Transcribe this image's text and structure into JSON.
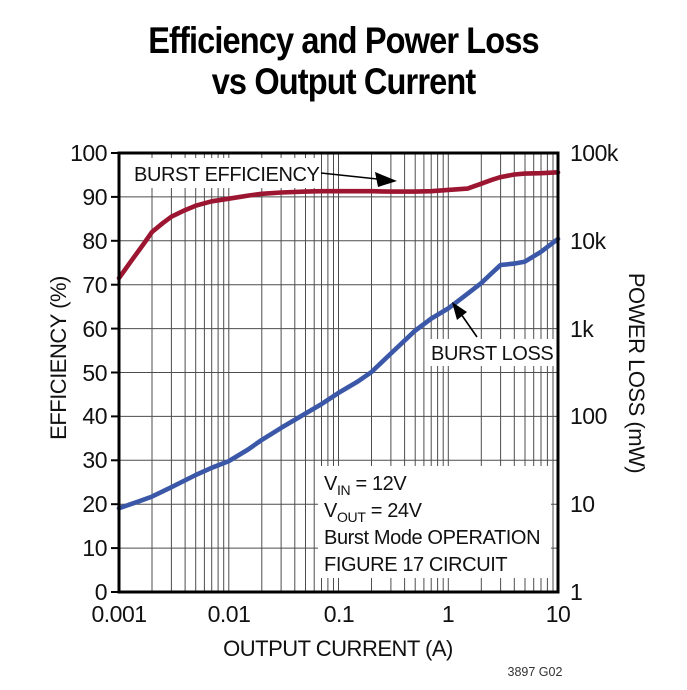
{
  "title": {
    "line1": "Efficiency and Power Loss",
    "line2": "vs Output Current"
  },
  "conditions": [
    {
      "pre": "V",
      "sub": "IN",
      "post": " = 12V"
    },
    {
      "pre": "V",
      "sub": "OUT",
      "post": " = 24V"
    },
    {
      "pre": "Burst Mode OPERATION",
      "sub": "",
      "post": ""
    },
    {
      "pre": "FIGURE 17 CIRCUIT",
      "sub": "",
      "post": ""
    }
  ],
  "colors": {
    "efficiency_curve": "#9c1632",
    "loss_curve": "#3b57a8",
    "grid": "#4d4d4d",
    "axis": "#000000",
    "background": "#ffffff"
  },
  "chart_data": {
    "type": "line",
    "title": "Efficiency and Power Loss vs Output Current",
    "figure_code": "3897 G02",
    "x_axis": {
      "label": "OUTPUT CURRENT (A)",
      "scale": "log",
      "min": 0.001,
      "max": 10,
      "ticks": [
        "0.001",
        "0.01",
        "0.1",
        "1",
        "10"
      ],
      "grid": "log minor gridlines on"
    },
    "y_left": {
      "label": "EFFICIENCY (%)",
      "scale": "linear",
      "min": 0,
      "max": 100,
      "step": 10,
      "ticks": [
        "100",
        "90",
        "80",
        "70",
        "60",
        "50",
        "40",
        "30",
        "20",
        "10",
        "0"
      ]
    },
    "y_right": {
      "label": "POWER LOSS (mW)",
      "scale": "log",
      "min": 1,
      "max": 100000,
      "ticks": [
        "100k",
        "10k",
        "1k",
        "100",
        "10",
        "1"
      ]
    },
    "series": [
      {
        "name": "BURST EFFICIENCY",
        "axis": "left",
        "units": "%",
        "color": "#9c1632",
        "points": [
          [
            0.001,
            71.5
          ],
          [
            0.0013,
            75.5
          ],
          [
            0.0017,
            79.5
          ],
          [
            0.002,
            82
          ],
          [
            0.0025,
            84
          ],
          [
            0.003,
            85.5
          ],
          [
            0.004,
            87
          ],
          [
            0.005,
            88
          ],
          [
            0.007,
            89
          ],
          [
            0.01,
            89.6
          ],
          [
            0.015,
            90.3
          ],
          [
            0.02,
            90.7
          ],
          [
            0.03,
            91
          ],
          [
            0.05,
            91.2
          ],
          [
            0.07,
            91.3
          ],
          [
            0.1,
            91.3
          ],
          [
            0.15,
            91.3
          ],
          [
            0.2,
            91.3
          ],
          [
            0.3,
            91.2
          ],
          [
            0.5,
            91.2
          ],
          [
            0.7,
            91.3
          ],
          [
            1,
            91.6
          ],
          [
            1.5,
            91.9
          ],
          [
            2,
            93
          ],
          [
            2.5,
            93.9
          ],
          [
            3,
            94.5
          ],
          [
            4,
            95.1
          ],
          [
            5,
            95.3
          ],
          [
            7,
            95.4
          ],
          [
            10,
            95.6
          ]
        ]
      },
      {
        "name": "BURST LOSS",
        "axis": "right",
        "units": "mW",
        "color": "#3b57a8",
        "points": [
          [
            0.001,
            9
          ],
          [
            0.0015,
            10.7
          ],
          [
            0.002,
            12.2
          ],
          [
            0.003,
            15.6
          ],
          [
            0.005,
            21.5
          ],
          [
            0.007,
            26
          ],
          [
            0.01,
            31
          ],
          [
            0.015,
            42
          ],
          [
            0.02,
            54
          ],
          [
            0.03,
            74
          ],
          [
            0.05,
            108
          ],
          [
            0.07,
            138
          ],
          [
            0.1,
            185
          ],
          [
            0.15,
            250
          ],
          [
            0.2,
            320
          ],
          [
            0.3,
            520
          ],
          [
            0.5,
            950
          ],
          [
            0.7,
            1300
          ],
          [
            1,
            1700
          ],
          [
            1.5,
            2500
          ],
          [
            2,
            3300
          ],
          [
            2.5,
            4300
          ],
          [
            3,
            5300
          ],
          [
            4,
            5500
          ],
          [
            5,
            5800
          ],
          [
            7,
            7500
          ],
          [
            10,
            10500
          ]
        ]
      }
    ],
    "annotations": [
      "VIN = 12V",
      "VOUT = 24V",
      "Burst Mode OPERATION",
      "FIGURE 17 CIRCUIT"
    ],
    "legend_position": "labels with arrows inside plot"
  }
}
